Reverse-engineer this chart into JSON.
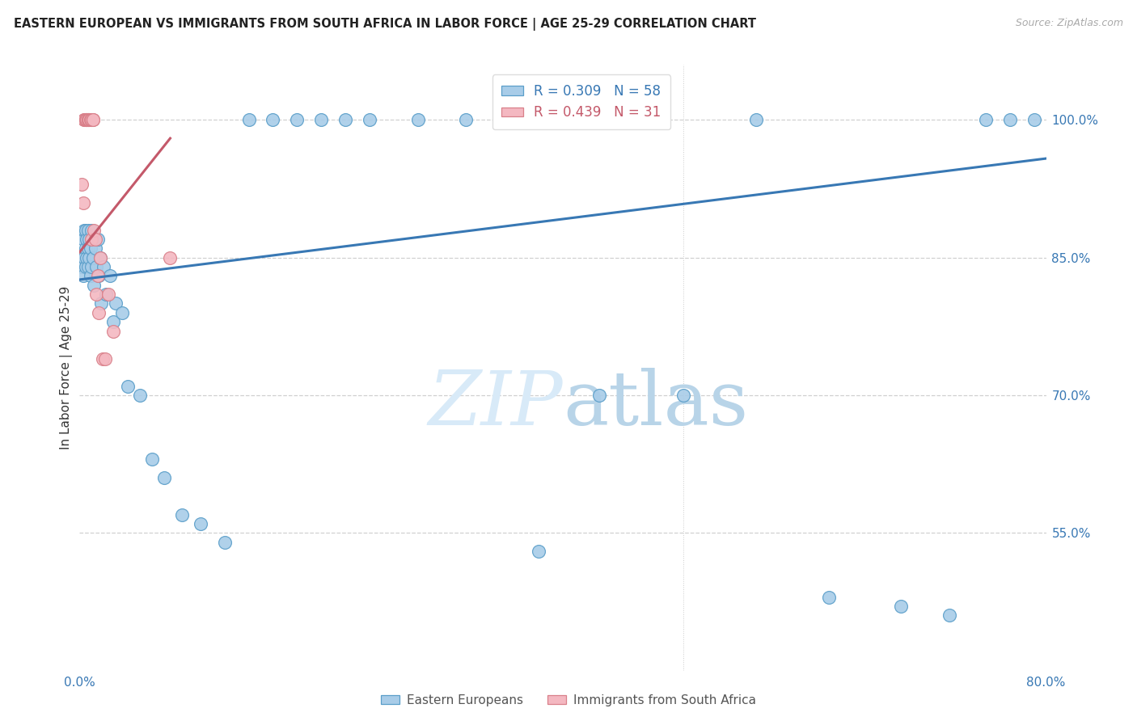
{
  "title": "EASTERN EUROPEAN VS IMMIGRANTS FROM SOUTH AFRICA IN LABOR FORCE | AGE 25-29 CORRELATION CHART",
  "source": "Source: ZipAtlas.com",
  "ylabel": "In Labor Force | Age 25-29",
  "xlabel_blue": "Eastern Europeans",
  "xlabel_pink": "Immigrants from South Africa",
  "xmin": 0.0,
  "xmax": 0.8,
  "ymin": 0.4,
  "ymax": 1.06,
  "R_blue": 0.309,
  "N_blue": 58,
  "R_pink": 0.439,
  "N_pink": 31,
  "blue_color": "#a8cce8",
  "pink_color": "#f4b8c1",
  "blue_edge_color": "#5a9ec9",
  "pink_edge_color": "#d9808a",
  "blue_line_color": "#3878b4",
  "pink_line_color": "#c4596a",
  "watermark_color": "#d8eaf8",
  "blue_scatter_x": [
    0.002,
    0.003,
    0.003,
    0.004,
    0.004,
    0.005,
    0.005,
    0.005,
    0.006,
    0.006,
    0.007,
    0.007,
    0.007,
    0.008,
    0.008,
    0.009,
    0.009,
    0.01,
    0.01,
    0.011,
    0.012,
    0.013,
    0.014,
    0.015,
    0.016,
    0.017,
    0.018,
    0.02,
    0.022,
    0.025,
    0.028,
    0.03,
    0.035,
    0.04,
    0.05,
    0.06,
    0.07,
    0.085,
    0.1,
    0.12,
    0.14,
    0.16,
    0.18,
    0.2,
    0.22,
    0.24,
    0.28,
    0.32,
    0.38,
    0.43,
    0.5,
    0.56,
    0.62,
    0.68,
    0.72,
    0.75,
    0.77,
    0.79
  ],
  "blue_scatter_y": [
    0.84,
    0.87,
    0.83,
    0.88,
    0.85,
    0.86,
    0.84,
    0.88,
    0.87,
    0.85,
    0.86,
    0.84,
    0.88,
    0.85,
    0.87,
    0.83,
    0.86,
    0.84,
    0.88,
    0.85,
    0.82,
    0.86,
    0.84,
    0.87,
    0.83,
    0.85,
    0.8,
    0.84,
    0.81,
    0.83,
    0.78,
    0.8,
    0.79,
    0.71,
    0.7,
    0.63,
    0.61,
    0.57,
    0.56,
    0.54,
    1.0,
    1.0,
    1.0,
    1.0,
    1.0,
    1.0,
    1.0,
    1.0,
    0.53,
    0.7,
    0.7,
    1.0,
    0.48,
    0.47,
    0.46,
    1.0,
    1.0,
    1.0
  ],
  "pink_scatter_x": [
    0.002,
    0.003,
    0.004,
    0.004,
    0.005,
    0.005,
    0.006,
    0.006,
    0.006,
    0.007,
    0.007,
    0.007,
    0.008,
    0.008,
    0.009,
    0.01,
    0.01,
    0.01,
    0.011,
    0.011,
    0.012,
    0.013,
    0.014,
    0.015,
    0.016,
    0.017,
    0.019,
    0.021,
    0.024,
    0.028,
    0.075
  ],
  "pink_scatter_y": [
    0.93,
    0.91,
    1.0,
    1.0,
    1.0,
    1.0,
    1.0,
    1.0,
    1.0,
    1.0,
    1.0,
    1.0,
    1.0,
    1.0,
    1.0,
    1.0,
    0.87,
    1.0,
    1.0,
    1.0,
    0.88,
    0.87,
    0.81,
    0.83,
    0.79,
    0.85,
    0.74,
    0.74,
    0.81,
    0.77,
    0.85
  ],
  "blue_line_x0": 0.0,
  "blue_line_x1": 0.8,
  "blue_line_y0": 0.826,
  "blue_line_y1": 0.958,
  "pink_line_x0": 0.0,
  "pink_line_x1": 0.075,
  "pink_line_y0": 0.856,
  "pink_line_y1": 0.98
}
